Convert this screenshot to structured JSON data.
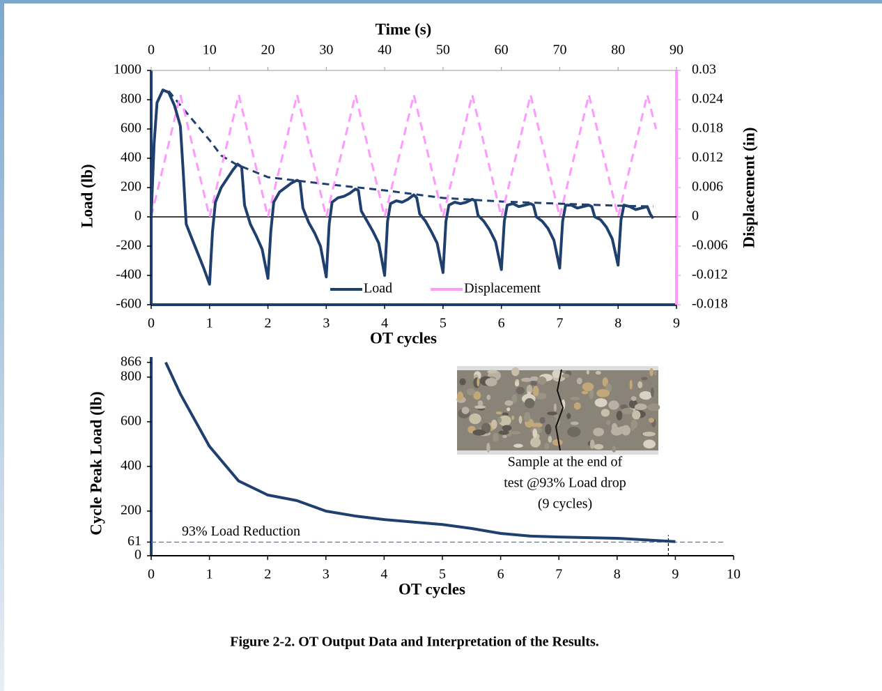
{
  "chart_data": [
    {
      "type": "line",
      "xlabel": "OT cycles",
      "ylabel": "Load (lb)",
      "y2label": "Displacement (in)",
      "x2label": "Time (s)",
      "xlim": [
        0,
        9
      ],
      "xticks": [
        0,
        1,
        2,
        3,
        4,
        5,
        6,
        7,
        8,
        9
      ],
      "x2lim": [
        0,
        90
      ],
      "x2ticks": [
        0,
        10,
        20,
        30,
        40,
        50,
        60,
        70,
        80,
        90
      ],
      "ylim": [
        -600,
        1000
      ],
      "yticks": [
        -600,
        -400,
        -200,
        0,
        200,
        400,
        600,
        800,
        1000
      ],
      "y2lim": [
        -0.018,
        0.03
      ],
      "y2ticks": [
        -0.018,
        -0.012,
        -0.006,
        0,
        0.006,
        0.012,
        0.018,
        0.024,
        0.03
      ],
      "zero_line": true,
      "legend": "lower center",
      "series": [
        {
          "name": "Load",
          "color": "#1f3f6e",
          "x": [
            0,
            0.05,
            0.1,
            0.2,
            0.3,
            0.4,
            0.5,
            0.55,
            0.6,
            0.7,
            0.8,
            0.9,
            1.0,
            1.05,
            1.1,
            1.2,
            1.3,
            1.4,
            1.48,
            1.55,
            1.6,
            1.7,
            1.8,
            1.9,
            2.0,
            2.05,
            2.1,
            2.2,
            2.3,
            2.4,
            2.5,
            2.55,
            2.6,
            2.7,
            2.8,
            2.9,
            3.0,
            3.05,
            3.1,
            3.2,
            3.3,
            3.4,
            3.5,
            3.55,
            3.6,
            3.7,
            3.8,
            3.9,
            4.0,
            4.05,
            4.1,
            4.2,
            4.3,
            4.4,
            4.5,
            4.55,
            4.6,
            4.7,
            4.8,
            4.9,
            5.0,
            5.05,
            5.1,
            5.2,
            5.3,
            5.4,
            5.5,
            5.55,
            5.6,
            5.7,
            5.8,
            5.9,
            6.0,
            6.05,
            6.1,
            6.2,
            6.3,
            6.4,
            6.5,
            6.55,
            6.6,
            6.7,
            6.8,
            6.9,
            7.0,
            7.05,
            7.1,
            7.2,
            7.3,
            7.4,
            7.5,
            7.55,
            7.6,
            7.7,
            7.8,
            7.9,
            8.0,
            8.05,
            8.1,
            8.2,
            8.3,
            8.4,
            8.5,
            8.55,
            8.6
          ],
          "values": [
            0,
            500,
            780,
            866,
            850,
            760,
            620,
            300,
            -50,
            -150,
            -250,
            -350,
            -460,
            -100,
            100,
            200,
            260,
            320,
            360,
            340,
            80,
            -50,
            -130,
            -220,
            -420,
            -100,
            100,
            170,
            200,
            230,
            250,
            240,
            60,
            -40,
            -110,
            -200,
            -410,
            -50,
            100,
            130,
            140,
            160,
            190,
            180,
            40,
            -30,
            -100,
            -180,
            -400,
            -30,
            90,
            110,
            100,
            120,
            150,
            130,
            20,
            -30,
            -100,
            -180,
            -380,
            -30,
            80,
            100,
            90,
            100,
            120,
            110,
            10,
            -30,
            -90,
            -170,
            -360,
            -30,
            80,
            90,
            70,
            80,
            90,
            80,
            0,
            -30,
            -80,
            -160,
            -350,
            -30,
            80,
            80,
            60,
            70,
            80,
            70,
            0,
            -20,
            -70,
            -150,
            -330,
            -20,
            80,
            70,
            50,
            60,
            70,
            20,
            -10
          ]
        },
        {
          "name": "Displacement",
          "color": "#ff99ff",
          "axis": "y2",
          "dash": true,
          "x": [
            0,
            0.5,
            1,
            1.5,
            2,
            2.5,
            3,
            3.5,
            4,
            4.5,
            5,
            5.5,
            6,
            6.5,
            7,
            7.5,
            8,
            8.5,
            8.65
          ],
          "values": [
            0,
            0.025,
            0,
            0.025,
            0,
            0.025,
            0,
            0.025,
            0,
            0.025,
            0,
            0.025,
            0,
            0.025,
            0,
            0.025,
            0,
            0.025,
            0.018
          ]
        },
        {
          "color": "#1f3f6e",
          "dash": true,
          "x": [
            0.3,
            0.5,
            0.8,
            1.0,
            1.2,
            1.45,
            2,
            3,
            4,
            5,
            6,
            7,
            8,
            8.6
          ],
          "values": [
            860,
            762,
            619,
            524,
            419,
            360,
            271,
            224,
            181,
            129,
            105,
            90,
            76,
            71
          ]
        }
      ]
    },
    {
      "type": "line",
      "xlabel": "OT cycles",
      "ylabel": "Cycle Peak Load (lb)",
      "xlim": [
        0,
        10
      ],
      "xticks": [
        0,
        1,
        2,
        3,
        4,
        5,
        6,
        7,
        8,
        9,
        10
      ],
      "ylim": [
        0,
        890
      ],
      "yticks": [
        0,
        61,
        200,
        400,
        600,
        800,
        866
      ],
      "hline": 61,
      "vline": 9,
      "annotation": "93% Load Reduction",
      "series": [
        {
          "color": "#1f3f6e",
          "x": [
            0.25,
            0.5,
            1,
            1.5,
            2,
            2.5,
            3,
            3.5,
            4,
            5,
            5.5,
            6,
            6.5,
            7,
            8,
            9
          ],
          "values": [
            866,
            725,
            490,
            335,
            272,
            247,
            200,
            178,
            162,
            140,
            122,
            100,
            88,
            84,
            78,
            63
          ]
        }
      ]
    }
  ],
  "photo_caption": [
    "Sample at the end of",
    "test @93% Load drop",
    "(9 cycles)"
  ],
  "caption": "Figure 2-2. OT Output Data and Interpretation of the Results."
}
